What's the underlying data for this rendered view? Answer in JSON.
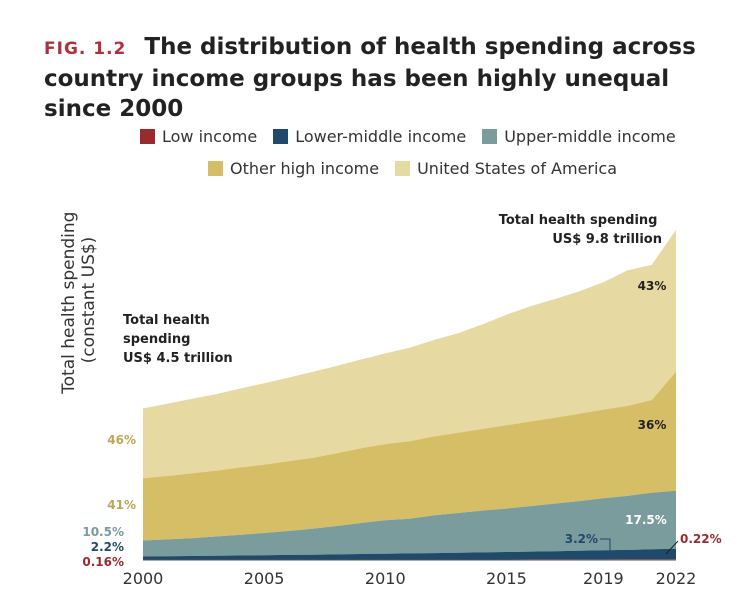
{
  "figure_label": "FIG. 1.2",
  "title": "The distribution of health spending across country income groups has been highly unequal since 2000",
  "legend": [
    {
      "label": "Low income",
      "color": "#9b2a2f"
    },
    {
      "label": "Lower-middle income",
      "color": "#1f4a6b"
    },
    {
      "label": "Upper-middle income",
      "color": "#7a9c9c"
    },
    {
      "label": "Other high income",
      "color": "#d6be66"
    },
    {
      "label": "United States of America",
      "color": "#e6d9a2"
    }
  ],
  "chart_data": {
    "type": "area",
    "stacked": true,
    "ylabel": "Total health spending (constant US$)",
    "xlabel": "",
    "x": [
      2000,
      2001,
      2002,
      2003,
      2004,
      2005,
      2006,
      2007,
      2008,
      2009,
      2010,
      2011,
      2012,
      2013,
      2014,
      2015,
      2016,
      2017,
      2018,
      2019,
      2020,
      2021,
      2022
    ],
    "x_ticks": [
      "2000",
      "2005",
      "2010",
      "2015",
      "2019",
      "2022"
    ],
    "ylim": [
      0,
      10.5
    ],
    "units": "trillion constant US$",
    "series": [
      {
        "name": "Low income",
        "values": [
          0.007,
          0.007,
          0.008,
          0.008,
          0.009,
          0.009,
          0.01,
          0.01,
          0.011,
          0.012,
          0.012,
          0.013,
          0.014,
          0.014,
          0.015,
          0.016,
          0.017,
          0.017,
          0.018,
          0.019,
          0.02,
          0.021,
          0.022
        ]
      },
      {
        "name": "Lower-middle income",
        "values": [
          0.1,
          0.105,
          0.11,
          0.118,
          0.125,
          0.132,
          0.14,
          0.148,
          0.156,
          0.165,
          0.175,
          0.182,
          0.19,
          0.2,
          0.21,
          0.22,
          0.232,
          0.245,
          0.258,
          0.272,
          0.28,
          0.295,
          0.31
        ]
      },
      {
        "name": "Upper-middle income",
        "values": [
          0.47,
          0.5,
          0.53,
          0.57,
          0.61,
          0.66,
          0.71,
          0.77,
          0.84,
          0.92,
          0.99,
          1.03,
          1.12,
          1.18,
          1.24,
          1.29,
          1.35,
          1.41,
          1.47,
          1.54,
          1.6,
          1.68,
          1.72
        ]
      },
      {
        "name": "Other high income",
        "values": [
          1.85,
          1.88,
          1.92,
          1.95,
          2.0,
          2.03,
          2.07,
          2.1,
          2.16,
          2.22,
          2.26,
          2.3,
          2.34,
          2.38,
          2.42,
          2.47,
          2.51,
          2.55,
          2.59,
          2.63,
          2.67,
          2.75,
          3.53
        ]
      },
      {
        "name": "United States of America",
        "values": [
          2.07,
          2.14,
          2.21,
          2.27,
          2.34,
          2.41,
          2.48,
          2.55,
          2.59,
          2.63,
          2.69,
          2.77,
          2.86,
          2.95,
          3.1,
          3.28,
          3.42,
          3.52,
          3.63,
          3.78,
          4.02,
          4.01,
          4.21
        ]
      }
    ],
    "annotations": {
      "total_2000": {
        "line1": "Total health",
        "line2": "spending",
        "line3": "US$ 4.5 trillion"
      },
      "total_2022": {
        "line1": "Total health spending",
        "line2": "US$ 9.8 trillion"
      },
      "share_2000": [
        {
          "series": "United States of America",
          "label": "46%",
          "color": "#c0a455"
        },
        {
          "series": "Other high income",
          "label": "41%",
          "color": "#c0a455"
        },
        {
          "series": "Upper-middle income",
          "label": "10.5%",
          "color": "#7a9c9c"
        },
        {
          "series": "Lower-middle income",
          "label": "2.2%",
          "color": "#1f4a6b"
        },
        {
          "series": "Low income",
          "label": "0.16%",
          "color": "#9b2a2f"
        }
      ],
      "share_2022": [
        {
          "series": "United States of America",
          "label": "43%",
          "color": "#222222"
        },
        {
          "series": "Other high income",
          "label": "36%",
          "color": "#222222"
        },
        {
          "series": "Upper-middle income",
          "label": "17.5%",
          "color": "#ffffff"
        },
        {
          "series": "Lower-middle income",
          "label": "3.2%",
          "color": "#1f4a6b"
        },
        {
          "series": "Low income",
          "label": "0.22%",
          "color": "#9b2a2f"
        }
      ]
    }
  }
}
